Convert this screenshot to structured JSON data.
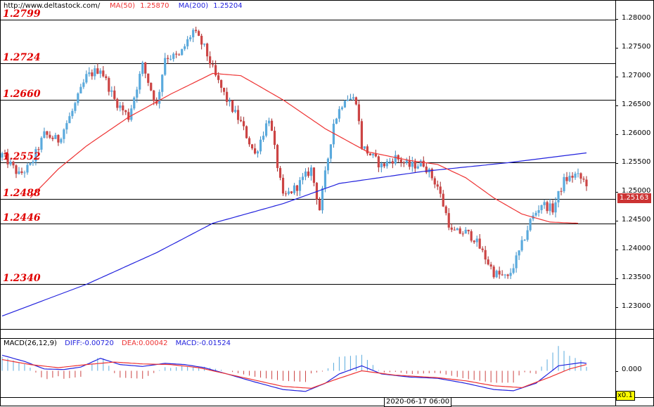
{
  "header": {
    "site_url": "http://www.deltastock.com/",
    "ma50_label": "MA(50)",
    "ma50_value": "1.25870",
    "ma200_label": "MA(200)",
    "ma200_value": "1.25204"
  },
  "macd_header": {
    "title": "MACD(26,12,9)",
    "diff": "DIFF:-0.00720",
    "dea": "DEA:0.00042",
    "macd": "MACD:-0.01524"
  },
  "levels": [
    {
      "label": "1.2799",
      "value": 1.2799
    },
    {
      "label": "1.2724",
      "value": 1.2724
    },
    {
      "label": "1.2660",
      "value": 1.266
    },
    {
      "label": "1.2552",
      "value": 1.2552
    },
    {
      "label": "1.2488",
      "value": 1.2488
    },
    {
      "label": "1.2446",
      "value": 1.2446
    },
    {
      "label": "1.2340",
      "value": 1.234
    }
  ],
  "price_axis_ticks": [
    "1.28000",
    "1.27500",
    "1.27000",
    "1.26500",
    "1.26000",
    "1.25500",
    "1.25000",
    "1.24500",
    "1.24000",
    "1.23500",
    "1.23000"
  ],
  "current_price": "1.25163",
  "macd_axis_tick": "0.000",
  "cursor_date": "2020-06-17 06:00",
  "scale_label": "x0.1",
  "colors": {
    "up": "#5aaadd",
    "down": "#cc4444",
    "ma50": "#ee3333",
    "ma200": "#2222dd",
    "level_text": "#e00000"
  },
  "chart_data": {
    "type": "candlestick",
    "close_anchors": [
      [
        0,
        1.2565
      ],
      [
        6,
        1.253
      ],
      [
        10,
        1.2545
      ],
      [
        15,
        1.26
      ],
      [
        20,
        1.259
      ],
      [
        25,
        1.264
      ],
      [
        30,
        1.27
      ],
      [
        35,
        1.2715
      ],
      [
        40,
        1.266
      ],
      [
        45,
        1.263
      ],
      [
        50,
        1.272
      ],
      [
        55,
        1.265
      ],
      [
        58,
        1.2735
      ],
      [
        63,
        1.2735
      ],
      [
        68,
        1.278
      ],
      [
        72,
        1.275
      ],
      [
        76,
        1.27
      ],
      [
        80,
        1.266
      ],
      [
        85,
        1.262
      ],
      [
        90,
        1.2565
      ],
      [
        95,
        1.263
      ],
      [
        100,
        1.249
      ],
      [
        105,
        1.251
      ],
      [
        110,
        1.254
      ],
      [
        113,
        1.247
      ],
      [
        118,
        1.262
      ],
      [
        122,
        1.2665
      ],
      [
        126,
        1.266
      ],
      [
        128,
        1.258
      ],
      [
        135,
        1.2545
      ],
      [
        140,
        1.256
      ],
      [
        145,
        1.2545
      ],
      [
        150,
        1.255
      ],
      [
        155,
        1.251
      ],
      [
        160,
        1.243
      ],
      [
        165,
        1.243
      ],
      [
        168,
        1.242
      ],
      [
        171,
        1.2395
      ],
      [
        175,
        1.236
      ],
      [
        180,
        1.235
      ],
      [
        184,
        1.2395
      ],
      [
        188,
        1.245
      ],
      [
        192,
        1.248
      ],
      [
        196,
        1.247
      ],
      [
        200,
        1.252
      ],
      [
        204,
        1.253
      ],
      [
        208,
        1.2516
      ]
    ],
    "ma50_anchors": [
      [
        10,
        1.249
      ],
      [
        20,
        1.254
      ],
      [
        30,
        1.258
      ],
      [
        45,
        1.263
      ],
      [
        60,
        1.267
      ],
      [
        75,
        1.2706
      ],
      [
        85,
        1.2702
      ],
      [
        100,
        1.266
      ],
      [
        115,
        1.261
      ],
      [
        130,
        1.257
      ],
      [
        145,
        1.2555
      ],
      [
        155,
        1.2548
      ],
      [
        165,
        1.2525
      ],
      [
        175,
        1.249
      ],
      [
        185,
        1.2462
      ],
      [
        195,
        1.2448
      ],
      [
        205,
        1.2446
      ]
    ],
    "ma200_anchors": [
      [
        0,
        1.2285
      ],
      [
        30,
        1.234
      ],
      [
        55,
        1.2395
      ],
      [
        75,
        1.2446
      ],
      [
        100,
        1.248
      ],
      [
        120,
        1.2515
      ],
      [
        150,
        1.2536
      ],
      [
        180,
        1.2551
      ],
      [
        208,
        1.2568
      ]
    ],
    "price_range": [
      1.2265,
      1.2815
    ],
    "macd_range": [
      -0.004,
      0.004
    ],
    "title": "",
    "xlabel": "",
    "ylabel": "",
    "grid": false
  }
}
